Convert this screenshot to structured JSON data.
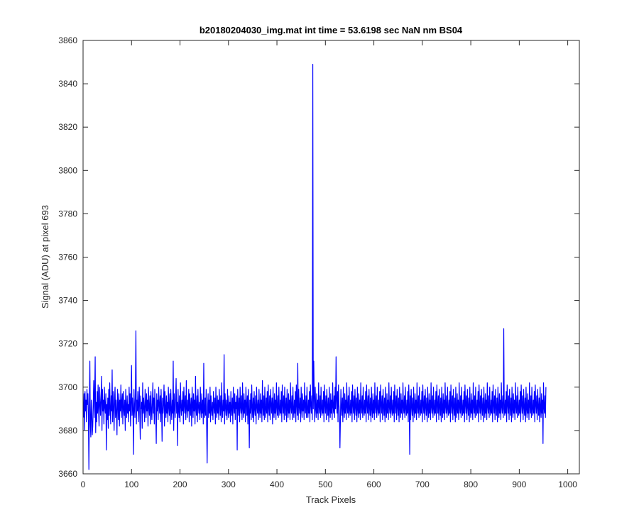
{
  "chart_data": {
    "type": "line",
    "title": "b20180204030_img.mat int time = 53.6198 sec  NaN nm BS04",
    "xlabel": "Track Pixels",
    "ylabel": "Signal (ADU) at pixel 693",
    "xlim": [
      0,
      1024
    ],
    "ylim": [
      3660,
      3860
    ],
    "x_ticks": [
      0,
      100,
      200,
      300,
      400,
      500,
      600,
      700,
      800,
      900,
      1000
    ],
    "y_ticks": [
      3660,
      3680,
      3700,
      3720,
      3740,
      3760,
      3780,
      3800,
      3820,
      3840,
      3860
    ],
    "grid": false,
    "legend": "none",
    "line_color": "#0000ff",
    "series": [
      {
        "x_start": 1,
        "x_step": 1,
        "values": [
          3686,
          3697,
          3680,
          3698,
          3689,
          3694,
          3684,
          3699,
          3692,
          3697,
          3687,
          3662,
          3691,
          3712,
          3683,
          3677,
          3694,
          3688,
          3678,
          3682,
          3692,
          3703,
          3686,
          3697,
          3714,
          3679,
          3693,
          3684,
          3698,
          3688,
          3701,
          3690,
          3682,
          3700,
          3693,
          3687,
          3695,
          3705,
          3680,
          3699,
          3689,
          3694,
          3683,
          3700,
          3691,
          3688,
          3697,
          3671,
          3692,
          3685,
          3695,
          3681,
          3699,
          3687,
          3702,
          3690,
          3683,
          3696,
          3689,
          3708,
          3684,
          3698,
          3691,
          3680,
          3695,
          3700,
          3686,
          3694,
          3688,
          3678,
          3699,
          3692,
          3685,
          3697,
          3682,
          3694,
          3689,
          3701,
          3686,
          3693,
          3697,
          3683,
          3698,
          3690,
          3687,
          3694,
          3680,
          3699,
          3691,
          3686,
          3696,
          3688,
          3692,
          3684,
          3700,
          3689,
          3697,
          3682,
          3693,
          3710,
          3687,
          3695,
          3690,
          3669,
          3699,
          3691,
          3686,
          3697,
          3726,
          3683,
          3694,
          3689,
          3698,
          3684,
          3692,
          3700,
          3687,
          3676,
          3696,
          3690,
          3693,
          3681,
          3702,
          3688,
          3695,
          3690,
          3684,
          3699,
          3692,
          3686,
          3697,
          3689,
          3694,
          3682,
          3700,
          3691,
          3687,
          3696,
          3683,
          3698,
          3690,
          3685,
          3693,
          3702,
          3688,
          3695,
          3683,
          3699,
          3691,
          3687,
          3674,
          3697,
          3689,
          3694,
          3685,
          3700,
          3692,
          3688,
          3696,
          3684,
          3699,
          3690,
          3675,
          3695,
          3688,
          3693,
          3701,
          3682,
          3698,
          3690,
          3686,
          3696,
          3688,
          3693,
          3684,
          3700,
          3691,
          3687,
          3697,
          3683,
          3699,
          3690,
          3685,
          3694,
          3688,
          3712,
          3680,
          3697,
          3691,
          3686,
          3695,
          3704,
          3688,
          3693,
          3673,
          3699,
          3690,
          3686,
          3696,
          3684,
          3702,
          3691,
          3687,
          3694,
          3689,
          3698,
          3683,
          3700,
          3692,
          3688,
          3696,
          3685,
          3703,
          3690,
          3686,
          3694,
          3689,
          3699,
          3684,
          3697,
          3691,
          3687,
          3695,
          3682,
          3700,
          3692,
          3686,
          3697,
          3689,
          3694,
          3683,
          3705,
          3690,
          3687,
          3696,
          3684,
          3699,
          3691,
          3688,
          3693,
          3685,
          3700,
          3690,
          3686,
          3697,
          3688,
          3694,
          3683,
          3711,
          3689,
          3686,
          3695,
          3687,
          3699,
          3682,
          3665,
          3691,
          3697,
          3686,
          3694,
          3688,
          3700,
          3684,
          3696,
          3690,
          3687,
          3693,
          3685,
          3698,
          3691,
          3688,
          3695,
          3683,
          3700,
          3690,
          3686,
          3696,
          3688,
          3694,
          3685,
          3699,
          3692,
          3687,
          3696,
          3684,
          3702,
          3690,
          3686,
          3694,
          3689,
          3715,
          3683,
          3697,
          3691,
          3687,
          3694,
          3685,
          3699,
          3690,
          3686,
          3696,
          3688,
          3693,
          3684,
          3698,
          3690,
          3687,
          3695,
          3683,
          3700,
          3691,
          3688,
          3697,
          3685,
          3693,
          3690,
          3696,
          3671,
          3699,
          3692,
          3687,
          3695,
          3684,
          3700,
          3691,
          3688,
          3696,
          3685,
          3702,
          3690,
          3686,
          3697,
          3688,
          3694,
          3684,
          3700,
          3692,
          3687,
          3696,
          3683,
          3699,
          3690,
          3672,
          3694,
          3688,
          3697,
          3685,
          3701,
          3691,
          3686,
          3695,
          3684,
          3698,
          3690,
          3687,
          3696,
          3683,
          3700,
          3691,
          3688,
          3694,
          3685,
          3699,
          3690,
          3686,
          3697,
          3688,
          3694,
          3684,
          3703,
          3691,
          3687,
          3696,
          3685,
          3700,
          3690,
          3686,
          3695,
          3688,
          3698,
          3684,
          3701,
          3691,
          3687,
          3696,
          3685,
          3699,
          3692,
          3688,
          3695,
          3683,
          3700,
          3690,
          3686,
          3697,
          3688,
          3694,
          3685,
          3702,
          3691,
          3687,
          3696,
          3686,
          3700,
          3690,
          3687,
          3694,
          3688,
          3698,
          3684,
          3701,
          3692,
          3688,
          3696,
          3685,
          3700,
          3691,
          3687,
          3695,
          3684,
          3699,
          3690,
          3686,
          3697,
          3688,
          3694,
          3685,
          3702,
          3691,
          3688,
          3696,
          3685,
          3700,
          3690,
          3686,
          3694,
          3688,
          3698,
          3684,
          3701,
          3692,
          3687,
          3711,
          3685,
          3699,
          3691,
          3688,
          3695,
          3684,
          3700,
          3690,
          3686,
          3697,
          3689,
          3694,
          3685,
          3702,
          3691,
          3688,
          3696,
          3686,
          3700,
          3690,
          3686,
          3694,
          3688,
          3698,
          3684,
          3701,
          3692,
          3688,
          3696,
          3685,
          3849,
          3690,
          3712,
          3695,
          3684,
          3700,
          3690,
          3686,
          3697,
          3688,
          3694,
          3685,
          3702,
          3691,
          3688,
          3696,
          3686,
          3700,
          3690,
          3687,
          3694,
          3688,
          3698,
          3684,
          3701,
          3692,
          3688,
          3696,
          3685,
          3699,
          3691,
          3687,
          3695,
          3684,
          3700,
          3690,
          3686,
          3697,
          3688,
          3694,
          3685,
          3702,
          3691,
          3688,
          3696,
          3686,
          3700,
          3690,
          3714,
          3694,
          3688,
          3698,
          3684,
          3701,
          3692,
          3688,
          3672,
          3685,
          3699,
          3691,
          3687,
          3695,
          3684,
          3700,
          3690,
          3686,
          3697,
          3688,
          3694,
          3685,
          3702,
          3691,
          3688,
          3696,
          3686,
          3700,
          3690,
          3687,
          3694,
          3688,
          3698,
          3684,
          3701,
          3692,
          3688,
          3696,
          3685,
          3699,
          3691,
          3687,
          3695,
          3684,
          3700,
          3690,
          3686,
          3697,
          3688,
          3694,
          3685,
          3702,
          3691,
          3688,
          3696,
          3686,
          3700,
          3690,
          3687,
          3694,
          3688,
          3698,
          3684,
          3701,
          3692,
          3688,
          3696,
          3685,
          3699,
          3691,
          3687,
          3695,
          3684,
          3700,
          3690,
          3686,
          3697,
          3688,
          3694,
          3685,
          3702,
          3691,
          3688,
          3696,
          3686,
          3700,
          3690,
          3687,
          3694,
          3688,
          3698,
          3684,
          3701,
          3692,
          3688,
          3696,
          3685,
          3699,
          3691,
          3687,
          3695,
          3684,
          3700,
          3690,
          3686,
          3697,
          3688,
          3694,
          3685,
          3702,
          3691,
          3688,
          3696,
          3686,
          3700,
          3690,
          3687,
          3694,
          3688,
          3698,
          3684,
          3701,
          3692,
          3688,
          3696,
          3685,
          3699,
          3691,
          3687,
          3695,
          3684,
          3700,
          3690,
          3686,
          3697,
          3688,
          3694,
          3685,
          3702,
          3691,
          3688,
          3696,
          3686,
          3700,
          3690,
          3687,
          3694,
          3688,
          3698,
          3684,
          3701,
          3692,
          3669,
          3696,
          3685,
          3699,
          3691,
          3687,
          3695,
          3684,
          3700,
          3690,
          3686,
          3697,
          3688,
          3694,
          3685,
          3702,
          3691,
          3688,
          3696,
          3686,
          3700,
          3690,
          3687,
          3694,
          3688,
          3698,
          3684,
          3701,
          3692,
          3688,
          3696,
          3685,
          3699,
          3691,
          3687,
          3695,
          3684,
          3700,
          3690,
          3686,
          3697,
          3688,
          3694,
          3685,
          3702,
          3691,
          3688,
          3696,
          3686,
          3700,
          3690,
          3687,
          3694,
          3688,
          3698,
          3684,
          3701,
          3692,
          3688,
          3696,
          3685,
          3699,
          3691,
          3687,
          3695,
          3684,
          3700,
          3690,
          3686,
          3697,
          3688,
          3694,
          3685,
          3702,
          3691,
          3688,
          3696,
          3686,
          3700,
          3690,
          3687,
          3694,
          3688,
          3698,
          3684,
          3701,
          3692,
          3688,
          3696,
          3685,
          3699,
          3691,
          3687,
          3695,
          3684,
          3700,
          3690,
          3686,
          3697,
          3688,
          3694,
          3685,
          3702,
          3691,
          3688,
          3696,
          3686,
          3700,
          3690,
          3687,
          3694,
          3688,
          3698,
          3684,
          3701,
          3692,
          3688,
          3696,
          3685,
          3699,
          3691,
          3687,
          3695,
          3684,
          3700,
          3690,
          3686,
          3697,
          3688,
          3694,
          3685,
          3702,
          3691,
          3688,
          3696,
          3686,
          3700,
          3690,
          3687,
          3694,
          3688,
          3698,
          3684,
          3701,
          3692,
          3688,
          3696,
          3685,
          3699,
          3691,
          3687,
          3695,
          3684,
          3700,
          3690,
          3686,
          3697,
          3688,
          3694,
          3685,
          3702,
          3691,
          3688,
          3696,
          3686,
          3700,
          3690,
          3687,
          3694,
          3688,
          3698,
          3684,
          3701,
          3692,
          3688,
          3696,
          3685,
          3699,
          3691,
          3687,
          3695,
          3684,
          3700,
          3690,
          3686,
          3697,
          3688,
          3694,
          3685,
          3702,
          3691,
          3688,
          3696,
          3686,
          3727,
          3690,
          3687,
          3694,
          3688,
          3698,
          3684,
          3701,
          3692,
          3688,
          3696,
          3685,
          3699,
          3691,
          3687,
          3695,
          3684,
          3700,
          3690,
          3686,
          3697,
          3688,
          3694,
          3685,
          3702,
          3691,
          3688,
          3696,
          3686,
          3700,
          3690,
          3687,
          3694,
          3688,
          3698,
          3684,
          3701,
          3692,
          3688,
          3696,
          3685,
          3699,
          3691,
          3687,
          3695,
          3684,
          3700,
          3690,
          3686,
          3697,
          3688,
          3694,
          3685,
          3702,
          3691,
          3688,
          3696,
          3686,
          3700,
          3690,
          3687,
          3694,
          3688,
          3698,
          3684,
          3701,
          3692,
          3688,
          3696,
          3685,
          3699,
          3691,
          3687,
          3695,
          3684,
          3700,
          3690,
          3686,
          3697,
          3688,
          3694,
          3674,
          3702,
          3691,
          3688,
          3696,
          3686,
          3700
        ]
      }
    ]
  }
}
